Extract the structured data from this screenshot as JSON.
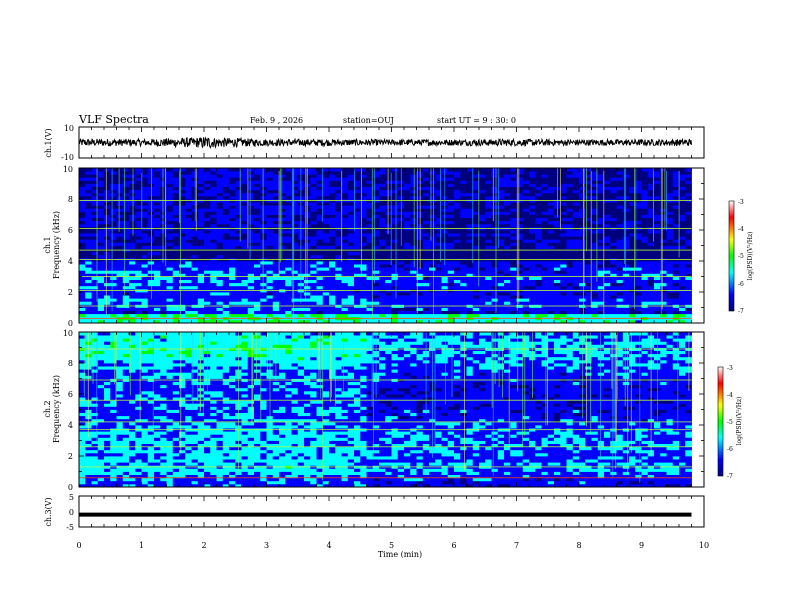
{
  "header": {
    "title": "VLF Spectra",
    "date": "Feb. 9 , 2026",
    "station": "station=OUJ",
    "start_ut": "start UT = 9 : 30: 0"
  },
  "chart_data": [
    {
      "type": "line",
      "name": "ch1-waveform",
      "ylabel": "ch.1(V)",
      "ylim": [
        -10,
        10
      ],
      "yticks": [
        "10",
        "-10"
      ],
      "xlim": [
        0,
        10
      ],
      "x": [
        0,
        1,
        2,
        3,
        4,
        5,
        6,
        7,
        8,
        9,
        9.8
      ],
      "y_envelope": [
        2.5,
        2.2,
        3.5,
        2.2,
        2.2,
        2.0,
        2.0,
        2.2,
        2.0,
        2.0,
        2.2
      ]
    },
    {
      "type": "heatmap",
      "name": "ch1-spectrogram",
      "ylabel": "ch.1\nFrequency (kHz)",
      "ylim": [
        0,
        10
      ],
      "yticks": [
        "0",
        "2",
        "4",
        "6",
        "8",
        "10"
      ],
      "xlim": [
        0,
        10
      ],
      "data_end_min": 9.8,
      "colorbar": {
        "label": "log(PSD)(V²/Hz)",
        "range": [
          -7,
          -3
        ],
        "ticks": [
          "-3",
          "-4",
          "-5",
          "-6",
          "-7"
        ]
      }
    },
    {
      "type": "heatmap",
      "name": "ch2-spectrogram",
      "ylabel": "ch.2\nFrequency (kHz)",
      "ylim": [
        0,
        10
      ],
      "yticks": [
        "0",
        "2",
        "4",
        "6",
        "8",
        "10"
      ],
      "xlim": [
        0,
        10
      ],
      "data_end_min": 9.8,
      "colorbar": {
        "label": "log(PSD)(V²/Hz)",
        "range": [
          -7,
          -3
        ],
        "ticks": [
          "-3",
          "-4",
          "-5",
          "-6",
          "-7"
        ]
      }
    },
    {
      "type": "line",
      "name": "ch3-waveform",
      "ylabel": "ch.3(V)",
      "ylim": [
        -5,
        5
      ],
      "yticks": [
        "5",
        "0",
        "-5"
      ],
      "xlim": [
        0,
        10
      ],
      "x": [
        0,
        9.8
      ],
      "y": [
        -1,
        -1
      ]
    }
  ],
  "x_axis": {
    "label": "Time (min)",
    "ticks": [
      "0",
      "1",
      "2",
      "3",
      "4",
      "5",
      "6",
      "7",
      "8",
      "9",
      "10"
    ]
  },
  "colors": {
    "colormap": [
      "#00007f",
      "#0000ff",
      "#00ffff",
      "#00ff00",
      "#ffff00",
      "#ff0000",
      "#ffffff"
    ]
  }
}
